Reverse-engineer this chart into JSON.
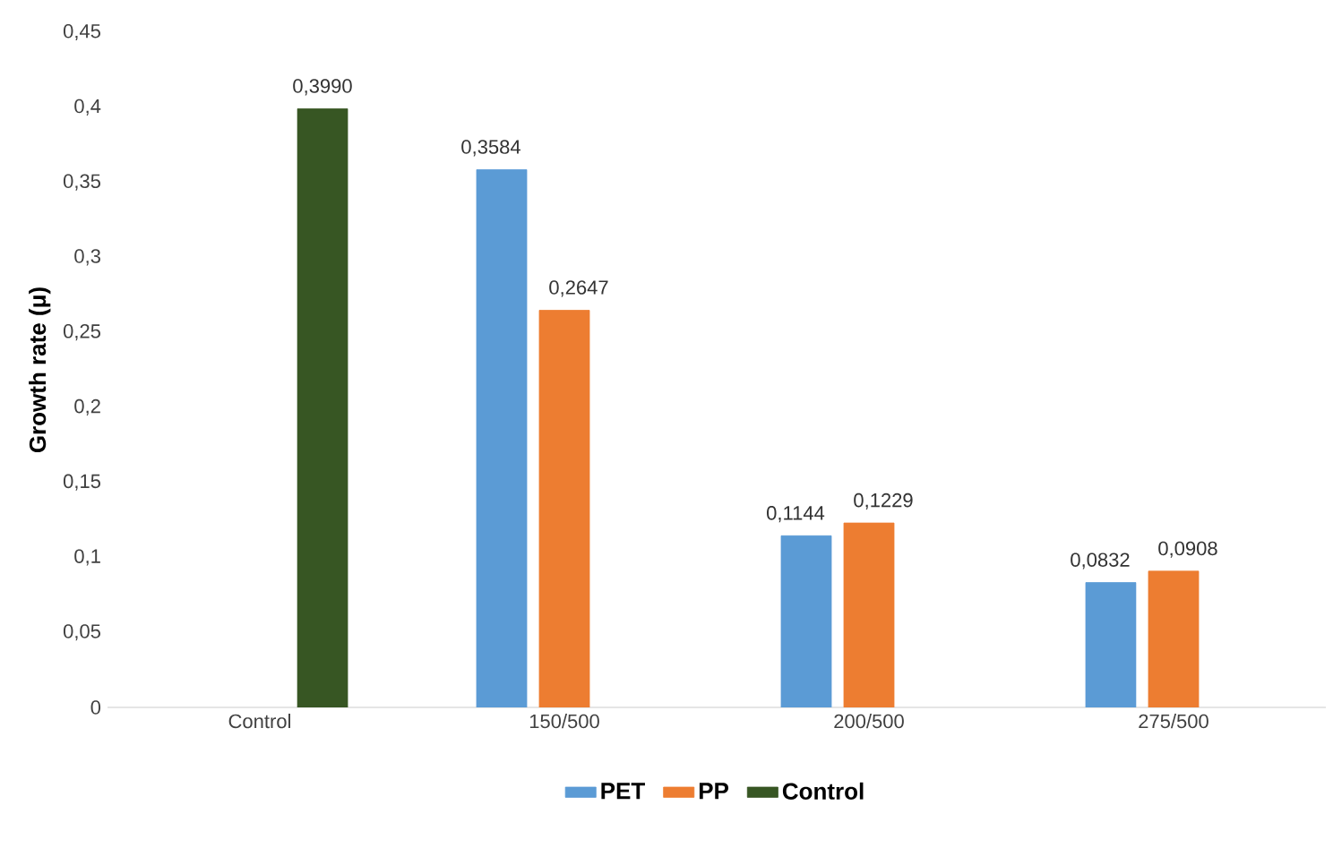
{
  "chart_data": {
    "type": "bar",
    "ylabel": "Growth rate (μ)",
    "categories": [
      "Control",
      "150/500",
      "200/500",
      "275/500"
    ],
    "series": [
      {
        "name": "PET",
        "color": "#5b9bd5",
        "values": [
          null,
          0.3584,
          0.1144,
          0.0832
        ],
        "value_labels": [
          null,
          "0,3584",
          "0,1144",
          "0,0832"
        ]
      },
      {
        "name": "PP",
        "color": "#ed7d31",
        "values": [
          null,
          0.2647,
          0.1229,
          0.0908
        ],
        "value_labels": [
          null,
          "0,2647",
          "0,1229",
          "0,0908"
        ]
      },
      {
        "name": "Control",
        "color": "#375623",
        "values": [
          0.399,
          null,
          null,
          null
        ],
        "value_labels": [
          "0,3990",
          null,
          null,
          null
        ]
      }
    ],
    "ylim": [
      0,
      0.45
    ],
    "yticks": [
      0,
      {
        "value": 0.05,
        "label": "0,05"
      },
      {
        "value": 0.1,
        "label": "0,1"
      },
      {
        "value": 0.15,
        "label": "0,15"
      },
      {
        "value": 0.2,
        "label": "0,2"
      },
      {
        "value": 0.25,
        "label": "0,25"
      },
      {
        "value": 0.3,
        "label": "0,3"
      },
      {
        "value": 0.35,
        "label": "0,35"
      },
      {
        "value": 0.4,
        "label": "0,4"
      },
      {
        "value": 0.45,
        "label": "0,45"
      }
    ],
    "grid": false,
    "legend": "bottom"
  }
}
